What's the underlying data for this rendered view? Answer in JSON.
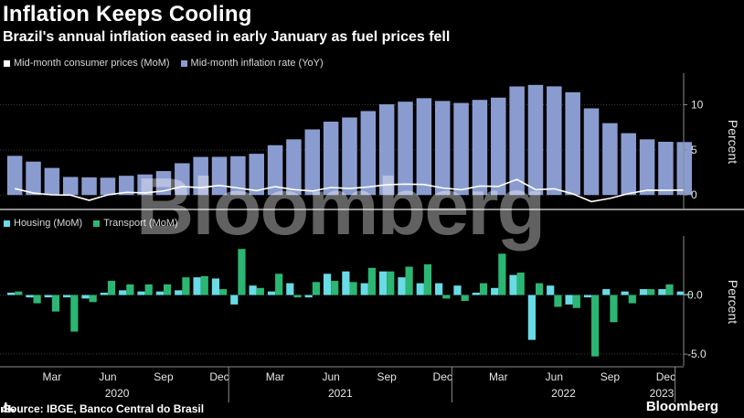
{
  "header": {
    "title": "Inflation Keeps Cooling",
    "subtitle": "Brazil's annual inflation eased in early January as fuel prices fell"
  },
  "colors": {
    "bar_blue": "#8a9ccf",
    "line_white": "#ffffff",
    "housing": "#69dbe6",
    "transport": "#2bb673",
    "axis": "#8a8a8a",
    "background": "#000000"
  },
  "footer": {
    "source": "Source: IBGE, Banco Central do Brasil",
    "brand": "Bloomberg",
    "brand_icon": "bar-chart-icon"
  },
  "watermark": "Bloomberg",
  "chart_data": [
    {
      "type": "bar",
      "panel": "top",
      "legend": [
        "Mid-month consumer prices (MoM)",
        "Mid-month inflation rate (YoY)"
      ],
      "ylabel": "Percent",
      "ylim": [
        -1.5,
        13.5
      ],
      "yticks": [
        0,
        5,
        10
      ],
      "ytick_labels": [
        "0",
        "5",
        "10"
      ],
      "grid": true,
      "categories": [
        "2020-01",
        "2020-02",
        "2020-03",
        "2020-04",
        "2020-05",
        "2020-06",
        "2020-07",
        "2020-08",
        "2020-09",
        "2020-10",
        "2020-11",
        "2020-12",
        "2021-01",
        "2021-02",
        "2021-03",
        "2021-04",
        "2021-05",
        "2021-06",
        "2021-07",
        "2021-08",
        "2021-09",
        "2021-10",
        "2021-11",
        "2021-12",
        "2022-01",
        "2022-02",
        "2022-03",
        "2022-04",
        "2022-05",
        "2022-06",
        "2022-07",
        "2022-08",
        "2022-09",
        "2022-10",
        "2022-11",
        "2022-12",
        "2023-01"
      ],
      "series": [
        {
          "name": "Mid-month inflation rate (YoY)",
          "kind": "bar",
          "values": [
            4.34,
            3.7,
            3.0,
            2.0,
            1.96,
            1.92,
            2.13,
            2.28,
            2.65,
            3.52,
            4.22,
            4.23,
            4.3,
            4.57,
            5.52,
            6.17,
            7.27,
            8.13,
            8.59,
            9.3,
            10.05,
            10.34,
            10.73,
            10.42,
            10.2,
            10.54,
            10.79,
            12.03,
            12.2,
            12.04,
            11.39,
            9.6,
            7.96,
            6.85,
            6.17,
            5.9,
            5.87
          ]
        },
        {
          "name": "Mid-month consumer prices (MoM)",
          "kind": "line",
          "values": [
            0.71,
            0.22,
            0.02,
            -0.01,
            -0.59,
            0.02,
            0.3,
            0.23,
            0.45,
            0.94,
            0.81,
            1.06,
            0.78,
            0.48,
            0.93,
            0.6,
            0.44,
            0.83,
            0.72,
            0.89,
            1.14,
            1.2,
            1.17,
            0.78,
            0.58,
            0.99,
            0.95,
            1.73,
            0.59,
            0.69,
            0.13,
            -0.73,
            -0.37,
            0.16,
            0.53,
            0.52,
            0.55
          ]
        }
      ]
    },
    {
      "type": "bar",
      "panel": "bottom",
      "legend": [
        "Housing (MoM)",
        "Transport (MoM)"
      ],
      "ylabel": "Percent",
      "ylim": [
        -6.0,
        5.0
      ],
      "yticks": [
        0,
        -5
      ],
      "ytick_labels": [
        "0.0",
        "-5.0"
      ],
      "grid": true,
      "categories": [
        "2020-01",
        "2020-02",
        "2020-03",
        "2020-04",
        "2020-05",
        "2020-06",
        "2020-07",
        "2020-08",
        "2020-09",
        "2020-10",
        "2020-11",
        "2020-12",
        "2021-01",
        "2021-02",
        "2021-03",
        "2021-04",
        "2021-05",
        "2021-06",
        "2021-07",
        "2021-08",
        "2021-09",
        "2021-10",
        "2021-11",
        "2021-12",
        "2022-01",
        "2022-02",
        "2022-03",
        "2022-04",
        "2022-05",
        "2022-06",
        "2022-07",
        "2022-08",
        "2022-09",
        "2022-10",
        "2022-11",
        "2022-12",
        "2023-01"
      ],
      "series": [
        {
          "name": "Housing (MoM)",
          "values": [
            0.2,
            -0.2,
            -0.2,
            -0.2,
            -0.3,
            0.2,
            0.4,
            0.3,
            0.3,
            0.4,
            1.5,
            1.4,
            -0.8,
            0.8,
            0.3,
            1.0,
            -0.2,
            1.8,
            2.0,
            1.0,
            2.0,
            1.5,
            1.0,
            1.0,
            0.8,
            0.2,
            0.6,
            1.7,
            -3.8,
            0.8,
            -0.8,
            -0.2,
            0.5,
            0.3,
            0.5,
            0.5,
            0.3
          ]
        },
        {
          "name": "Transport (MoM)",
          "values": [
            0.3,
            -0.7,
            -1.4,
            -3.1,
            -0.6,
            1.2,
            0.9,
            0.9,
            0.9,
            1.5,
            1.6,
            0.5,
            3.9,
            0.6,
            1.8,
            -0.2,
            1.1,
            1.2,
            1.1,
            2.3,
            2.0,
            2.4,
            2.6,
            -0.3,
            -0.5,
            1.0,
            3.5,
            1.9,
            1.0,
            -1.0,
            -1.1,
            -5.2,
            -2.3,
            -0.7,
            0.5,
            0.9,
            0.1
          ]
        }
      ]
    }
  ],
  "xaxis": {
    "month_ticks": [
      "Mar",
      "Jun",
      "Sep",
      "Dec",
      "Mar",
      "Jun",
      "Sep",
      "Dec",
      "Mar",
      "Jun",
      "Sep",
      "Dec"
    ],
    "year_labels": [
      "2020",
      "2021",
      "2022",
      "2023"
    ]
  }
}
